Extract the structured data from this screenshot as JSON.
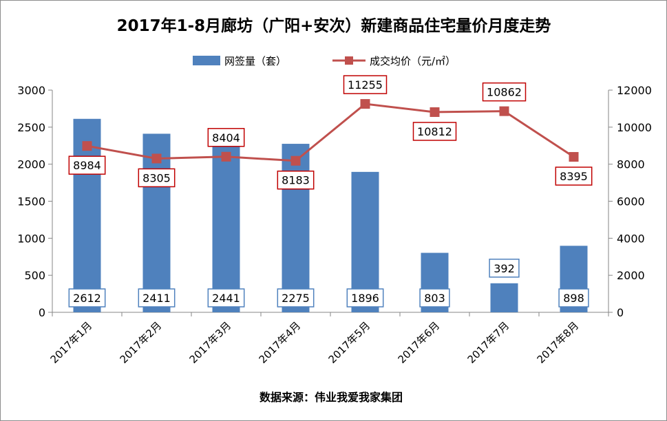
{
  "chart_data": {
    "type": "bar",
    "title": "2017年1-8月廊坊（广阳+安次）新建商品住宅量价月度走势",
    "categories": [
      "2017年1月",
      "2017年2月",
      "2017年3月",
      "2017年4月",
      "2017年5月",
      "2017年6月",
      "2017年7月",
      "2017年8月"
    ],
    "series": [
      {
        "name": "网签量（套）",
        "type": "bar",
        "axis": "left",
        "color": "#4f81bd",
        "label_border_color": "#4f81bd",
        "values": [
          2612,
          2411,
          2441,
          2275,
          1896,
          803,
          392,
          898
        ]
      },
      {
        "name": "成交均价（元/㎡）",
        "type": "line",
        "axis": "right",
        "color": "#c0504d",
        "label_border_color": "#c00000",
        "marker": "square",
        "values": [
          8984,
          8305,
          8404,
          8183,
          11255,
          10812,
          10862,
          8395
        ]
      }
    ],
    "y_left": {
      "lim": [
        0,
        3000
      ],
      "ticks": [
        0,
        500,
        1000,
        1500,
        2000,
        2500,
        3000
      ]
    },
    "y_right": {
      "lim": [
        0,
        12000
      ],
      "ticks": [
        0,
        2000,
        4000,
        6000,
        8000,
        10000,
        12000
      ]
    },
    "legend": {
      "position": "top"
    },
    "grid": false,
    "source": "数据来源：伟业我爱我家集团"
  }
}
